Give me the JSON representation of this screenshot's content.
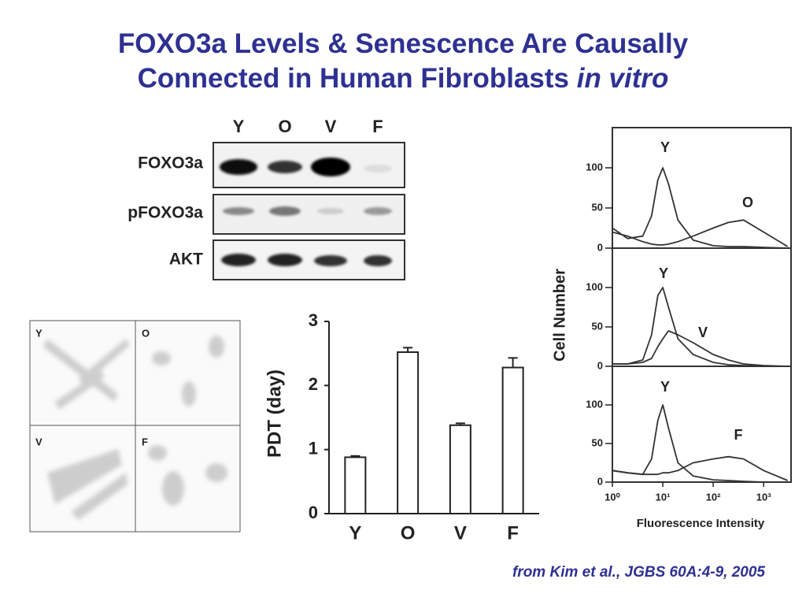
{
  "title_line1": "FOXO3a Levels & Senescence Are Causally",
  "title_line2": "Connected in Human Fibroblasts",
  "title_line2_italic": "in vitro",
  "blot": {
    "lanes": [
      "Y",
      "O",
      "V",
      "F"
    ],
    "rows": [
      "FOXO3a",
      "pFOXO3a",
      "AKT"
    ]
  },
  "micrograph": {
    "panels": [
      "Y",
      "O",
      "V",
      "F"
    ]
  },
  "citation": "from Kim et al., JGBS 60A:4-9, 2005",
  "chart_data": [
    {
      "type": "bar",
      "ylabel": "PDT (day)",
      "categories": [
        "Y",
        "O",
        "V",
        "F"
      ],
      "values": [
        0.88,
        2.52,
        1.38,
        2.28
      ],
      "errors": [
        0.02,
        0.07,
        0.03,
        0.15
      ],
      "color": "#ffffff",
      "ylim": [
        0,
        3
      ],
      "yticks": [
        0,
        1,
        2,
        3
      ]
    },
    {
      "type": "line",
      "log_x": true,
      "xlim": [
        1,
        3500
      ],
      "ylim": [
        0,
        150
      ],
      "yticks": [
        0,
        50,
        100
      ],
      "x": [
        1,
        2,
        4,
        6,
        8,
        10,
        13,
        20,
        40,
        100,
        200,
        400,
        1000,
        3000
      ],
      "series": [
        {
          "name": "Y",
          "color": "#333333",
          "values": [
            25,
            12,
            15,
            40,
            85,
            100,
            80,
            35,
            10,
            3,
            2,
            2,
            1,
            0
          ]
        },
        {
          "name": "O",
          "color": "#333333",
          "values": [
            20,
            15,
            8,
            5,
            4,
            4,
            5,
            8,
            15,
            25,
            32,
            35,
            20,
            2
          ]
        }
      ]
    },
    {
      "type": "line",
      "log_x": true,
      "ylabel": "Cell Number",
      "xlim": [
        1,
        3500
      ],
      "ylim": [
        0,
        150
      ],
      "yticks": [
        0,
        50,
        100
      ],
      "x": [
        1,
        2,
        4,
        6,
        8,
        10,
        13,
        20,
        40,
        100,
        200,
        400,
        1000,
        3000
      ],
      "series": [
        {
          "name": "Y",
          "color": "#333333",
          "values": [
            3,
            3,
            8,
            40,
            90,
            100,
            75,
            35,
            15,
            5,
            2,
            1,
            0,
            0
          ]
        },
        {
          "name": "V",
          "color": "#333333",
          "values": [
            3,
            3,
            5,
            10,
            25,
            35,
            45,
            40,
            30,
            15,
            8,
            3,
            1,
            0
          ]
        }
      ]
    },
    {
      "type": "line",
      "log_x": true,
      "xlabel": "Fluorescence Intensity",
      "xlim": [
        1,
        3500
      ],
      "ylim": [
        0,
        150
      ],
      "yticks": [
        0,
        50,
        100
      ],
      "xticks": [
        {
          "value": 1,
          "label": "10⁰"
        },
        {
          "value": 10,
          "label": "10¹"
        },
        {
          "value": 100,
          "label": "10²"
        },
        {
          "value": 1000,
          "label": "10³"
        }
      ],
      "x": [
        1,
        2,
        4,
        6,
        8,
        10,
        13,
        20,
        40,
        100,
        200,
        400,
        1000,
        3000
      ],
      "series": [
        {
          "name": "Y",
          "color": "#333333",
          "values": [
            15,
            12,
            10,
            30,
            80,
            100,
            70,
            25,
            8,
            3,
            2,
            1,
            0,
            0
          ]
        },
        {
          "name": "F",
          "color": "#333333",
          "values": [
            15,
            12,
            10,
            10,
            10,
            12,
            12,
            15,
            25,
            30,
            33,
            30,
            15,
            2
          ]
        }
      ]
    }
  ]
}
